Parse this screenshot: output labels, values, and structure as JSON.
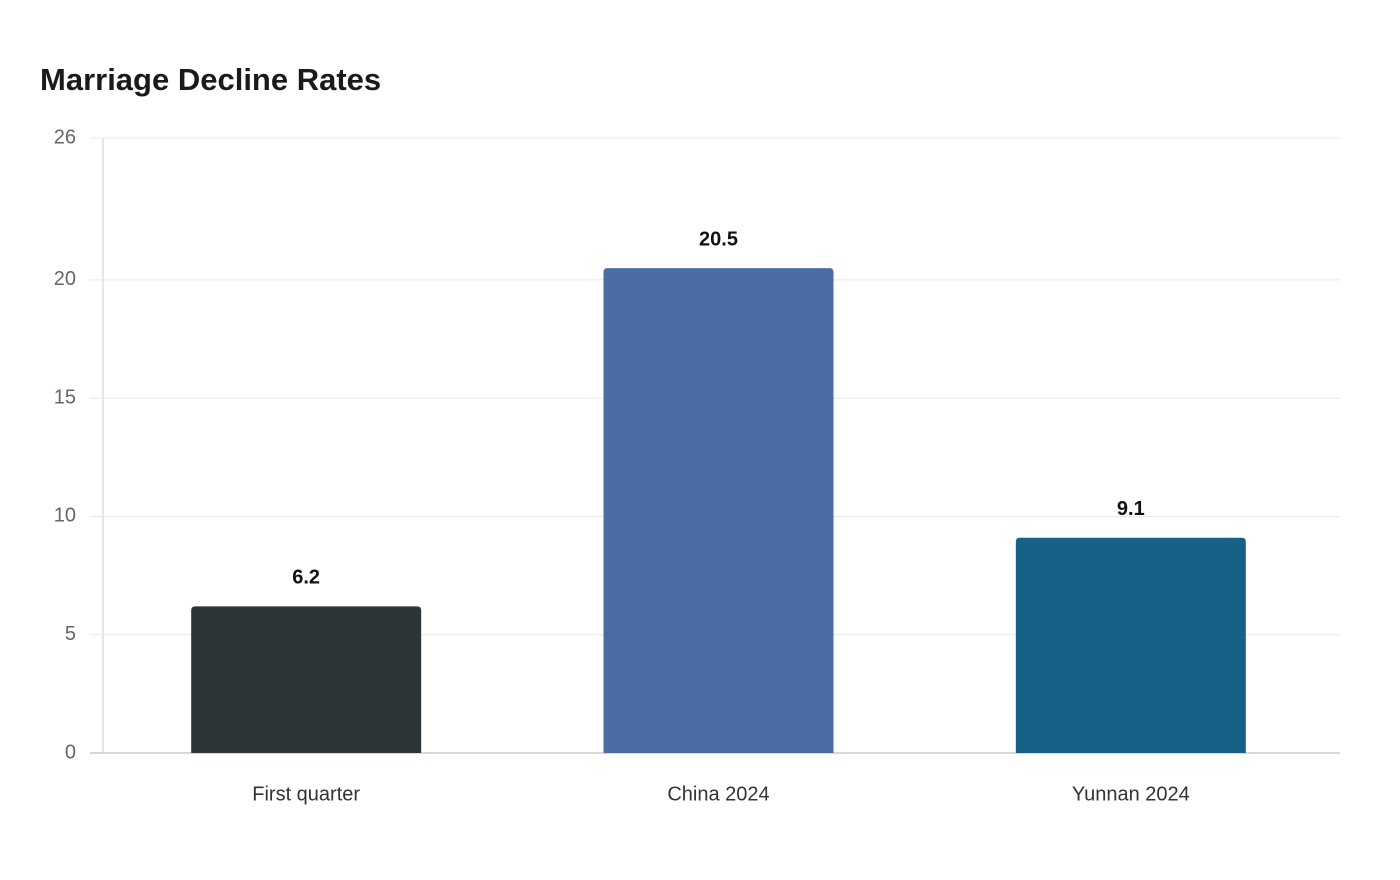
{
  "chart_data": {
    "type": "bar",
    "title": "Marriage Decline Rates",
    "categories": [
      "First quarter",
      "China 2024",
      "Yunnan 2024"
    ],
    "values": [
      6.2,
      20.5,
      9.1
    ],
    "colors": [
      "#2e3538",
      "#4a6da3",
      "#176087"
    ],
    "ylim": [
      0,
      26
    ],
    "yticks": [
      0,
      5,
      10,
      15,
      20,
      26
    ],
    "grid": true
  }
}
